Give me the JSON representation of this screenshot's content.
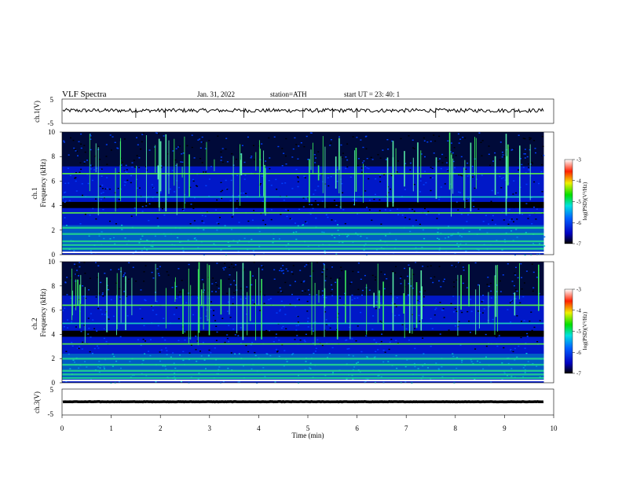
{
  "header": {
    "title": "VLF  Spectra",
    "date": "Jan. 31, 2022",
    "station": "station=ATH",
    "start": "start  UT  =   23: 40: 1"
  },
  "chart_data": [
    {
      "type": "line",
      "panel": "ch1",
      "ylabel": "ch.1(V)",
      "ylim": [
        -5,
        5
      ],
      "yticks": [
        "5",
        "-5"
      ],
      "xlim": [
        0,
        10
      ],
      "baseline": 0.3,
      "trace_end_min": 9.8
    },
    {
      "type": "heatmap",
      "panel": "ch1-spectrogram",
      "ylabel_top": "ch.1",
      "ylabel": "Frequency  (kHz)",
      "ylim": [
        0,
        10
      ],
      "yticks": [
        "0",
        "2",
        "4",
        "6",
        "8",
        "10"
      ],
      "xlim": [
        0,
        10
      ],
      "colorbar": {
        "label": "log(PSD)(V²/Hz)",
        "range": [
          -7,
          -3
        ],
        "ticks": [
          "-3",
          "-4",
          "-5",
          "-6",
          "-7"
        ]
      },
      "bands_khz": [
        6.6,
        4.7,
        3.4,
        2.2,
        1.7,
        1.1,
        0.8,
        0.5
      ]
    },
    {
      "type": "heatmap",
      "panel": "ch2-spectrogram",
      "ylabel_top": "ch.2",
      "ylabel": "Frequency  (kHz)",
      "ylim": [
        0,
        10
      ],
      "yticks": [
        "0",
        "2",
        "4",
        "6",
        "8",
        "10"
      ],
      "xlim": [
        0,
        10
      ],
      "colorbar": {
        "label": "log(PSD)(V²/Hz)",
        "range": [
          -7,
          -3
        ],
        "ticks": [
          "-3",
          "-4",
          "-5",
          "-6",
          "-7"
        ]
      },
      "bands_khz": [
        6.4,
        4.9,
        3.2,
        2.0,
        1.5,
        1.0,
        0.7,
        0.4
      ]
    },
    {
      "type": "line",
      "panel": "ch3",
      "ylabel": "ch.3(V)",
      "ylim": [
        -5,
        5
      ],
      "yticks": [
        "5",
        "-5"
      ],
      "xlim": [
        0,
        10
      ],
      "baseline": 0.1,
      "trace_end_min": 9.8,
      "xlabel": "Time  (min)",
      "xticks": [
        "0",
        "1",
        "2",
        "3",
        "4",
        "5",
        "6",
        "7",
        "8",
        "9",
        "10"
      ]
    }
  ]
}
